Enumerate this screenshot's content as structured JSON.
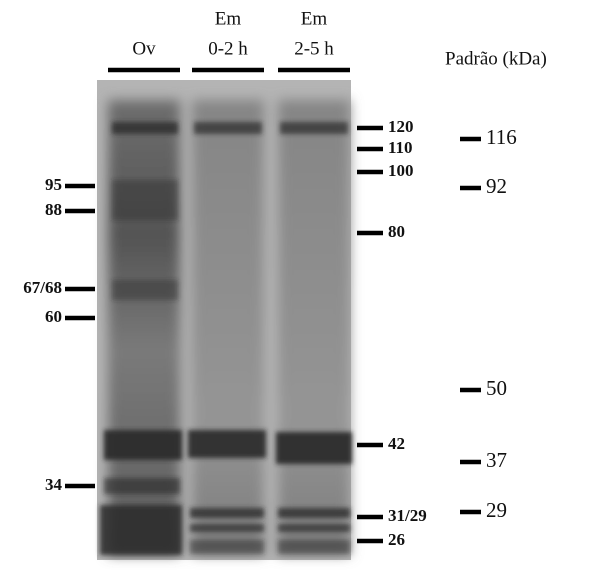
{
  "lanes": [
    {
      "lines": [
        "Ov"
      ]
    },
    {
      "lines": [
        "Em",
        "0-2 h"
      ]
    },
    {
      "lines": [
        "Em",
        "2-5 h"
      ]
    }
  ],
  "left_markers": [
    "95",
    "88",
    "67/68",
    "60",
    "34"
  ],
  "right_markers": [
    "120",
    "110",
    "100",
    "80",
    "42",
    "31/29",
    "26"
  ],
  "standards": {
    "title": "Padrão (kDa)",
    "labels": [
      "116",
      "92",
      "50",
      "37",
      "29"
    ]
  }
}
